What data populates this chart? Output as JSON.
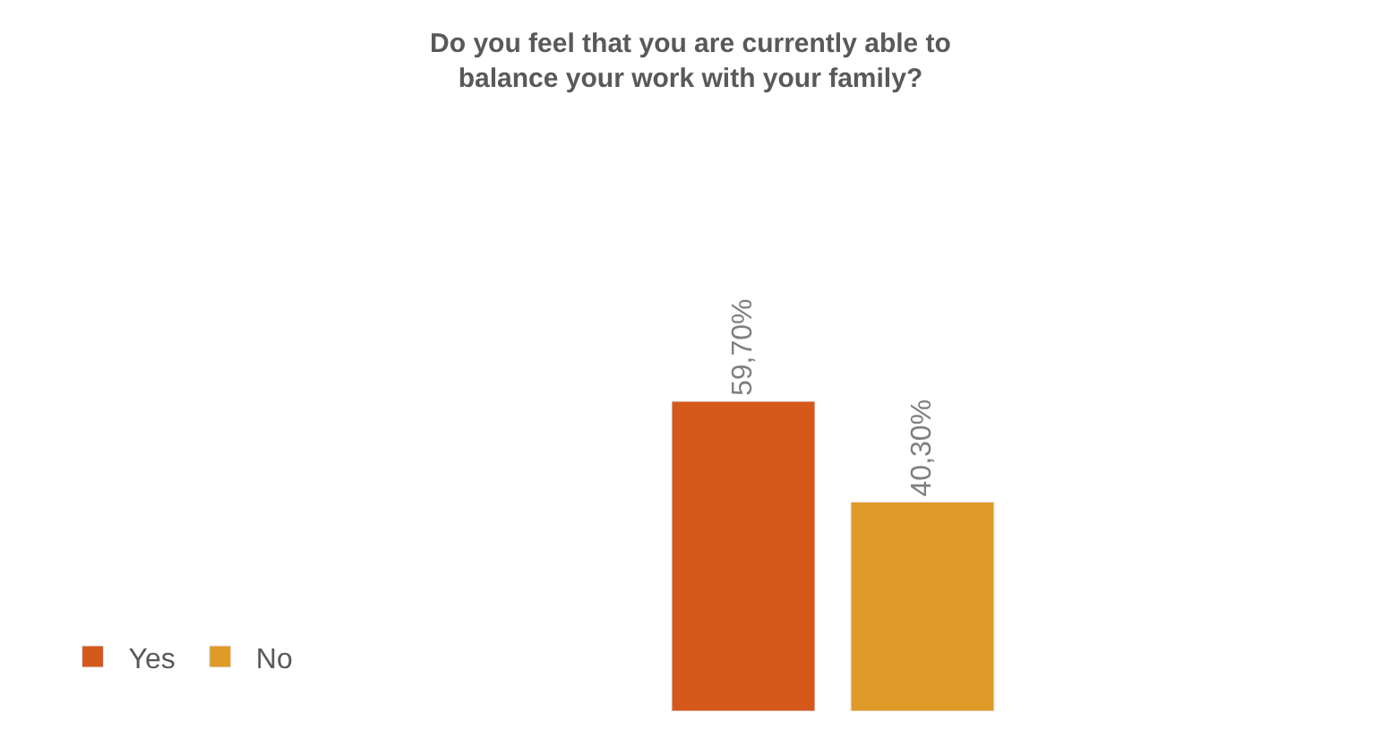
{
  "chart_data": {
    "type": "bar",
    "title": "Do you feel that you are currently able to\nbalance your work with your family?",
    "categories": [
      null
    ],
    "series": [
      {
        "name": "Yes",
        "color": "#d4581a",
        "values": [
          59.7
        ],
        "value_labels": [
          "59,70%"
        ]
      },
      {
        "name": "No",
        "color": "#e09a28",
        "values": [
          40.3
        ],
        "value_labels": [
          "40,30%"
        ]
      }
    ],
    "legend": "bottom left"
  }
}
